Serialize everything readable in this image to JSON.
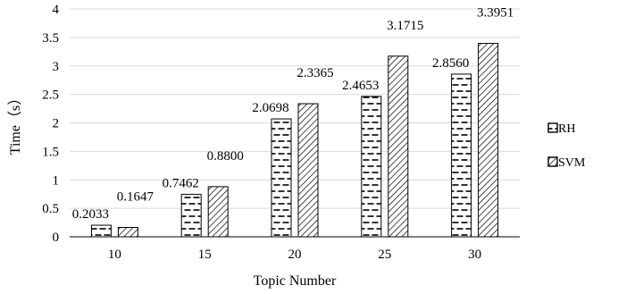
{
  "chart_data": {
    "type": "bar",
    "categories": [
      "10",
      "15",
      "20",
      "25",
      "30"
    ],
    "series": [
      {
        "name": "RH",
        "values": [
          0.2033,
          0.7462,
          2.0698,
          2.4653,
          2.856
        ],
        "labels": [
          "0.2033",
          "0.7462",
          "2.0698",
          "2.4653",
          "2.8560"
        ]
      },
      {
        "name": "SVM",
        "values": [
          0.1647,
          0.88,
          2.3365,
          3.1715,
          3.3951
        ],
        "labels": [
          "0.1647",
          "0.8800",
          "2.3365",
          "3.1715",
          "3.3951"
        ]
      }
    ],
    "xlabel": "Topic Number",
    "ylabel": "Time（s）",
    "ylim": [
      0,
      4
    ],
    "yticks": [
      "0",
      "0.5",
      "1",
      "1.5",
      "2",
      "2.5",
      "3",
      "3.5",
      "4"
    ],
    "grid": true,
    "legend_position": "right"
  }
}
